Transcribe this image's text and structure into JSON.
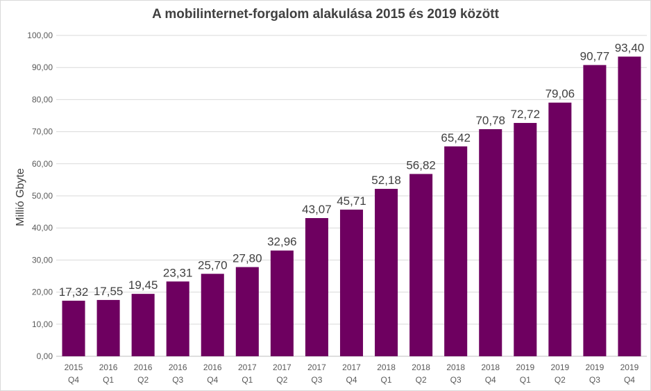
{
  "chart_data": {
    "type": "bar",
    "title": "A mobilinternet-forgalom  alakulása 2015 és 2019 között",
    "xlabel": "",
    "ylabel": "Millió Gbyte",
    "ylim": [
      0,
      100
    ],
    "yticks": [
      "0,00",
      "10,00",
      "20,00",
      "30,00",
      "40,00",
      "50,00",
      "60,00",
      "70,00",
      "80,00",
      "90,00",
      "100,00"
    ],
    "grid": true,
    "bar_color": "#6e0060",
    "categories": [
      [
        "2015",
        "Q4"
      ],
      [
        "2016",
        "Q1"
      ],
      [
        "2016",
        "Q2"
      ],
      [
        "2016",
        "Q3"
      ],
      [
        "2016",
        "Q4"
      ],
      [
        "2017",
        "Q1"
      ],
      [
        "2017",
        "Q2"
      ],
      [
        "2017",
        "Q3"
      ],
      [
        "2017",
        "Q4"
      ],
      [
        "2018",
        "Q1"
      ],
      [
        "2018",
        "Q2"
      ],
      [
        "2018",
        "Q3"
      ],
      [
        "2018",
        "Q4"
      ],
      [
        "2019",
        "Q1"
      ],
      [
        "2019",
        "Q2"
      ],
      [
        "2019",
        "Q3"
      ],
      [
        "2019",
        "Q4"
      ]
    ],
    "values": [
      17.32,
      17.55,
      19.45,
      23.31,
      25.7,
      27.8,
      32.96,
      43.07,
      45.71,
      52.18,
      56.82,
      65.42,
      70.78,
      72.72,
      79.06,
      90.77,
      93.4
    ],
    "data_labels": [
      "17,32",
      "17,55",
      "19,45",
      "23,31",
      "25,70",
      "27,80",
      "32,96",
      "43,07",
      "45,71",
      "52,18",
      "56,82",
      "65,42",
      "70,78",
      "72,72",
      "79,06",
      "90,77",
      "93,40"
    ]
  }
}
